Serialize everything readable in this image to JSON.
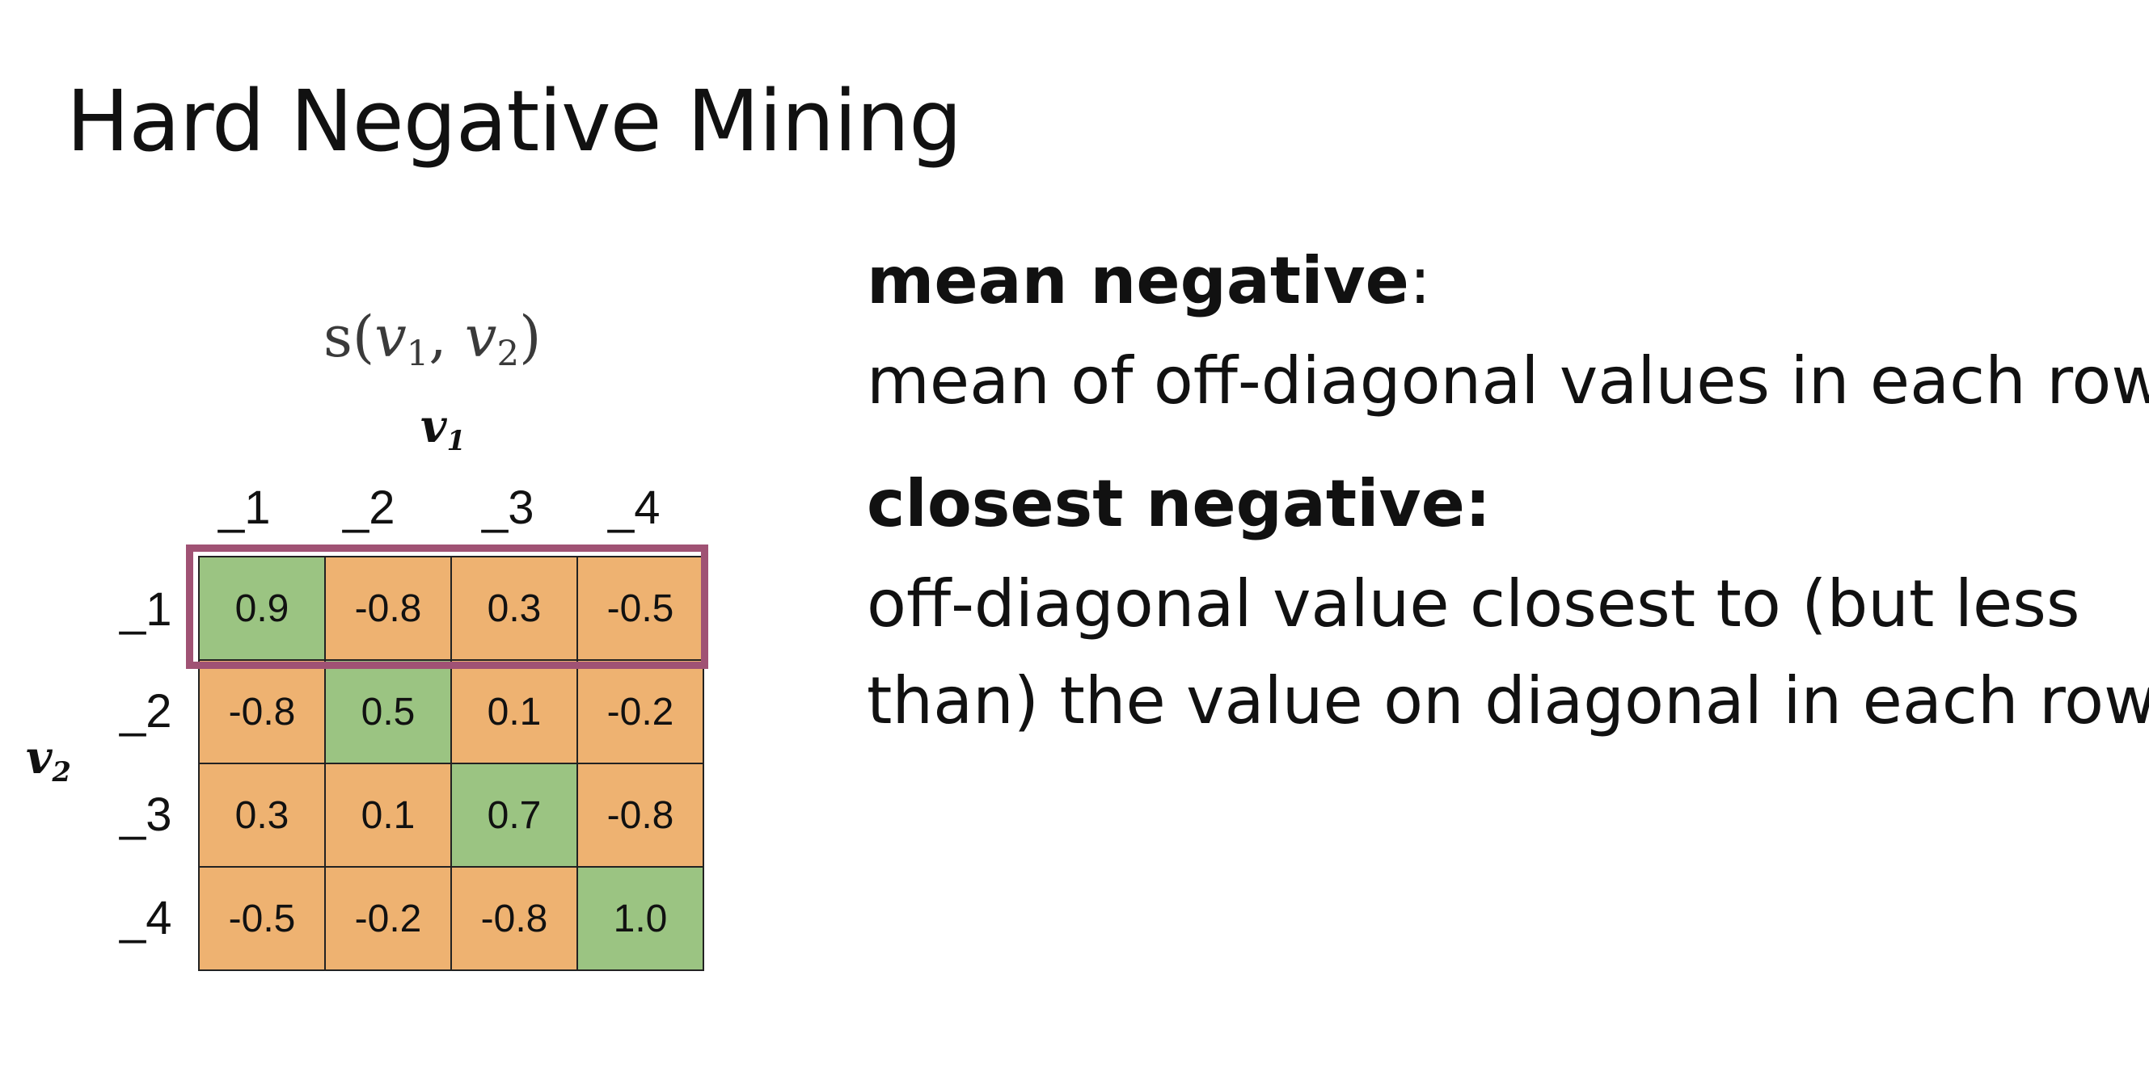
{
  "title": "Hard Negative Mining",
  "formula": {
    "func": "s(",
    "arg1": "v",
    "arg1_sub": "1",
    "sep": ", ",
    "arg2": "v",
    "arg2_sub": "2",
    "close": ")"
  },
  "axes": {
    "v1": "v",
    "v1_sub": "1",
    "v2": "v",
    "v2_sub": "2"
  },
  "matrix": {
    "column_labels": [
      "_1",
      "_2",
      "_3",
      "_4"
    ],
    "row_labels": [
      "_1",
      "_2",
      "_3",
      "_4"
    ],
    "rows": [
      [
        "0.9",
        "-0.8",
        "0.3",
        "-0.5"
      ],
      [
        "-0.8",
        "0.5",
        "0.1",
        "-0.2"
      ],
      [
        "0.3",
        "0.1",
        "0.7",
        "-0.8"
      ],
      [
        "-0.5",
        "-0.2",
        "-0.8",
        "1.0"
      ]
    ],
    "diagonal_color": "#9bc482",
    "off_diagonal_color": "#eeb271",
    "highlight_color": "#a05274",
    "highlighted_row": "_1"
  },
  "definitions": {
    "mean_term": "mean negative",
    "mean_colon": ":",
    "mean_text": "mean of off-diagonal values in each row",
    "closest_term": "closest negative:",
    "closest_text_line1": "off-diagonal value closest to (but less",
    "closest_text_line2": "than) the value on diagonal in each row"
  }
}
